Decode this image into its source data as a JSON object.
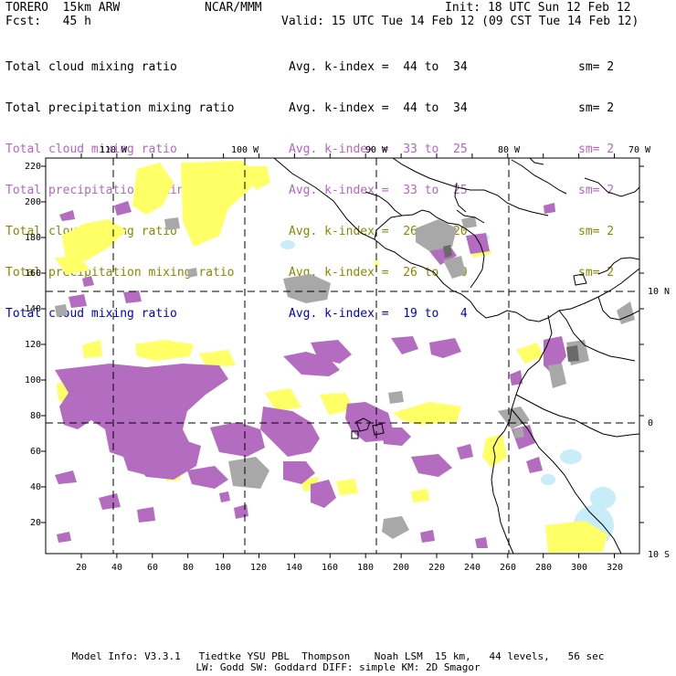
{
  "header": {
    "model": "TORERO  15km ARW",
    "center": "NCAR/MMM",
    "init": "Init: 18 UTC Sun 12 Feb 12",
    "fcst": "Fcst:   45 h",
    "valid": "Valid: 15 UTC Tue 14 Feb 12 (09 CST Tue 14 Feb 12)"
  },
  "legend": [
    {
      "field": "Total cloud mixing ratio",
      "index": "Avg. k-index =  44 to  34",
      "sm": "sm= 2",
      "color": "#000000"
    },
    {
      "field": "Total precipitation mixing ratio",
      "index": "Avg. k-index =  44 to  34",
      "sm": "sm= 2",
      "color": "#000000"
    },
    {
      "field": "Total cloud mixing ratio",
      "index": "Avg. k-index =  33 to  25",
      "sm": "sm= 2",
      "color": "#b565c5"
    },
    {
      "field": "Total precipitation mixing ratio",
      "index": "Avg. k-index =  33 to  25",
      "sm": "sm= 2",
      "color": "#b565c5"
    },
    {
      "field": "Total cloud mixing ratio",
      "index": "Avg. k-index =  26 to  20",
      "sm": "sm= 2",
      "color": "#888800"
    },
    {
      "field": "Total precipitation mixing ratio",
      "index": "Avg. k-index =  26 to  20",
      "sm": "sm= 2",
      "color": "#888800"
    },
    {
      "field": "Total cloud mixing ratio",
      "index": "Avg. k-index =  19 to   4",
      "sm": "",
      "color": "#0000cc"
    }
  ],
  "map": {
    "top_lon_labels": [
      "110 W",
      "100 W",
      "90 W",
      "80 W",
      "70 W"
    ],
    "right_lat_labels": [
      "10 N",
      "0",
      "10 S"
    ],
    "bottom_ticks": [
      "20",
      "40",
      "60",
      "80",
      "100",
      "120",
      "140",
      "160",
      "180",
      "200",
      "220",
      "240",
      "260",
      "280",
      "300",
      "320"
    ],
    "left_ticks": [
      "20",
      "40",
      "60",
      "80",
      "100",
      "120",
      "140",
      "160",
      "180",
      "200",
      "220"
    ],
    "colors": {
      "gray": "#a8a8a8",
      "purple": "#b36cbf",
      "yellow": "#ffff66",
      "lightblue": "#c8ecf8",
      "darkgray": "#6a6a6a"
    }
  },
  "footer": {
    "line1": "Model Info: V3.3.1   Tiedtke YSU PBL  Thompson    Noah LSM  15 km,   44 levels,   56 sec",
    "line2": "LW: Godd SW: Goddard DIFF: simple KM: 2D Smagor"
  }
}
